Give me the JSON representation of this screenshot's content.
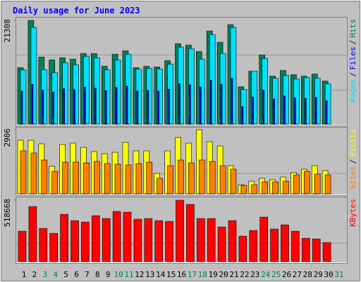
{
  "chart_data": {
    "type": "bar",
    "title": "Daily usage for June 2023",
    "categories": [
      "1",
      "2",
      "3",
      "4",
      "5",
      "6",
      "7",
      "8",
      "9",
      "10",
      "11",
      "12",
      "13",
      "14",
      "15",
      "16",
      "17",
      "18",
      "19",
      "20",
      "21",
      "22",
      "23",
      "24",
      "25",
      "26",
      "27",
      "28",
      "29",
      "30",
      "31"
    ],
    "category_colors": [
      "#000000",
      "#000000",
      "#00805c",
      "#00805c",
      "#000000",
      "#000000",
      "#000000",
      "#000000",
      "#000000",
      "#00805c",
      "#00805c",
      "#000000",
      "#000000",
      "#000000",
      "#000000",
      "#000000",
      "#00805c",
      "#00805c",
      "#000000",
      "#000000",
      "#000000",
      "#000000",
      "#000000",
      "#00805c",
      "#00805c",
      "#000000",
      "#000000",
      "#000000",
      "#000000",
      "#000000",
      "#00805c"
    ],
    "legend_separator": "/",
    "panels": [
      {
        "ylim": [
          0,
          21308
        ],
        "yticks": [
          21308
        ],
        "series": [
          {
            "name": "Hits",
            "color": "#00805c",
            "values": [
              11596,
              21308,
              13770,
              13191,
              13625,
              13336,
              14495,
              14495,
              11886,
              14350,
              15075,
              11596,
              11886,
              11741,
              13046,
              16524,
              16234,
              14930,
              19133,
              16814,
              20438,
              7682,
              10871,
              14205,
              9857,
              11016,
              10146,
              9857,
              10291,
              8842,
              null
            ]
          },
          {
            "name": "Files",
            "color": "#0000ff",
            "values": [
              6800,
              8200,
              7000,
              6600,
              7300,
              7100,
              7600,
              7400,
              6900,
              7500,
              7800,
              6800,
              6900,
              6800,
              7200,
              8300,
              8100,
              7600,
              9000,
              8200,
              9400,
              3600,
              5600,
              7000,
              5200,
              5800,
              5400,
              5300,
              5500,
              4800,
              null
            ]
          },
          {
            "name": "Pages",
            "color": "#00e0ff",
            "values": [
              11161,
              19858,
              11161,
              10581,
              12611,
              12176,
              13915,
              13625,
              11161,
              13190,
              14350,
              11306,
              11451,
              11306,
              12321,
              15800,
              15510,
              13335,
              18409,
              14495,
              19858,
              7103,
              10871,
              13480,
              9422,
              10002,
              9277,
              9567,
              9422,
              8262,
              null
            ]
          }
        ]
      },
      {
        "ylim": [
          0,
          2906
        ],
        "yticks": [
          2906
        ],
        "series": [
          {
            "name": "Visits",
            "color": "#ffff00",
            "values": [
              2427,
              2427,
              2267,
              1245,
              2235,
              2299,
              2107,
              1916,
              1820,
              1884,
              2331,
              1948,
              1948,
              926,
              1948,
              2554,
              2299,
              2906,
              2363,
              2171,
              1277,
              415,
              575,
              702,
              639,
              766,
              958,
              1118,
              1277,
              1054,
              null
            ]
          },
          {
            "name": "Sites",
            "color": "#ff8000",
            "values": [
              1948,
              1852,
              1533,
              1022,
              1437,
              1437,
              1405,
              1469,
              1373,
              1341,
              1309,
              1373,
              1437,
              702,
              1277,
              1533,
              1405,
              1533,
              1469,
              1277,
              1118,
              383,
              415,
              543,
              543,
              575,
              862,
              1022,
              894,
              862,
              null
            ]
          }
        ]
      },
      {
        "ylim": [
          0,
          518668
        ],
        "yticks": [
          518668
        ],
        "series": [
          {
            "name": "KBytes",
            "color": "#ff0000",
            "values": [
              256353,
              465013,
              280200,
              238468,
              399434,
              345779,
              333855,
              387511,
              363664,
              423281,
              417319,
              357702,
              363664,
              345779,
              339817,
              518668,
              482898,
              363664,
              363664,
              292123,
              345779,
              214621,
              262315,
              375587,
              274238,
              310008,
              256353,
              196736,
              190774,
              160966,
              null
            ]
          }
        ]
      }
    ]
  }
}
